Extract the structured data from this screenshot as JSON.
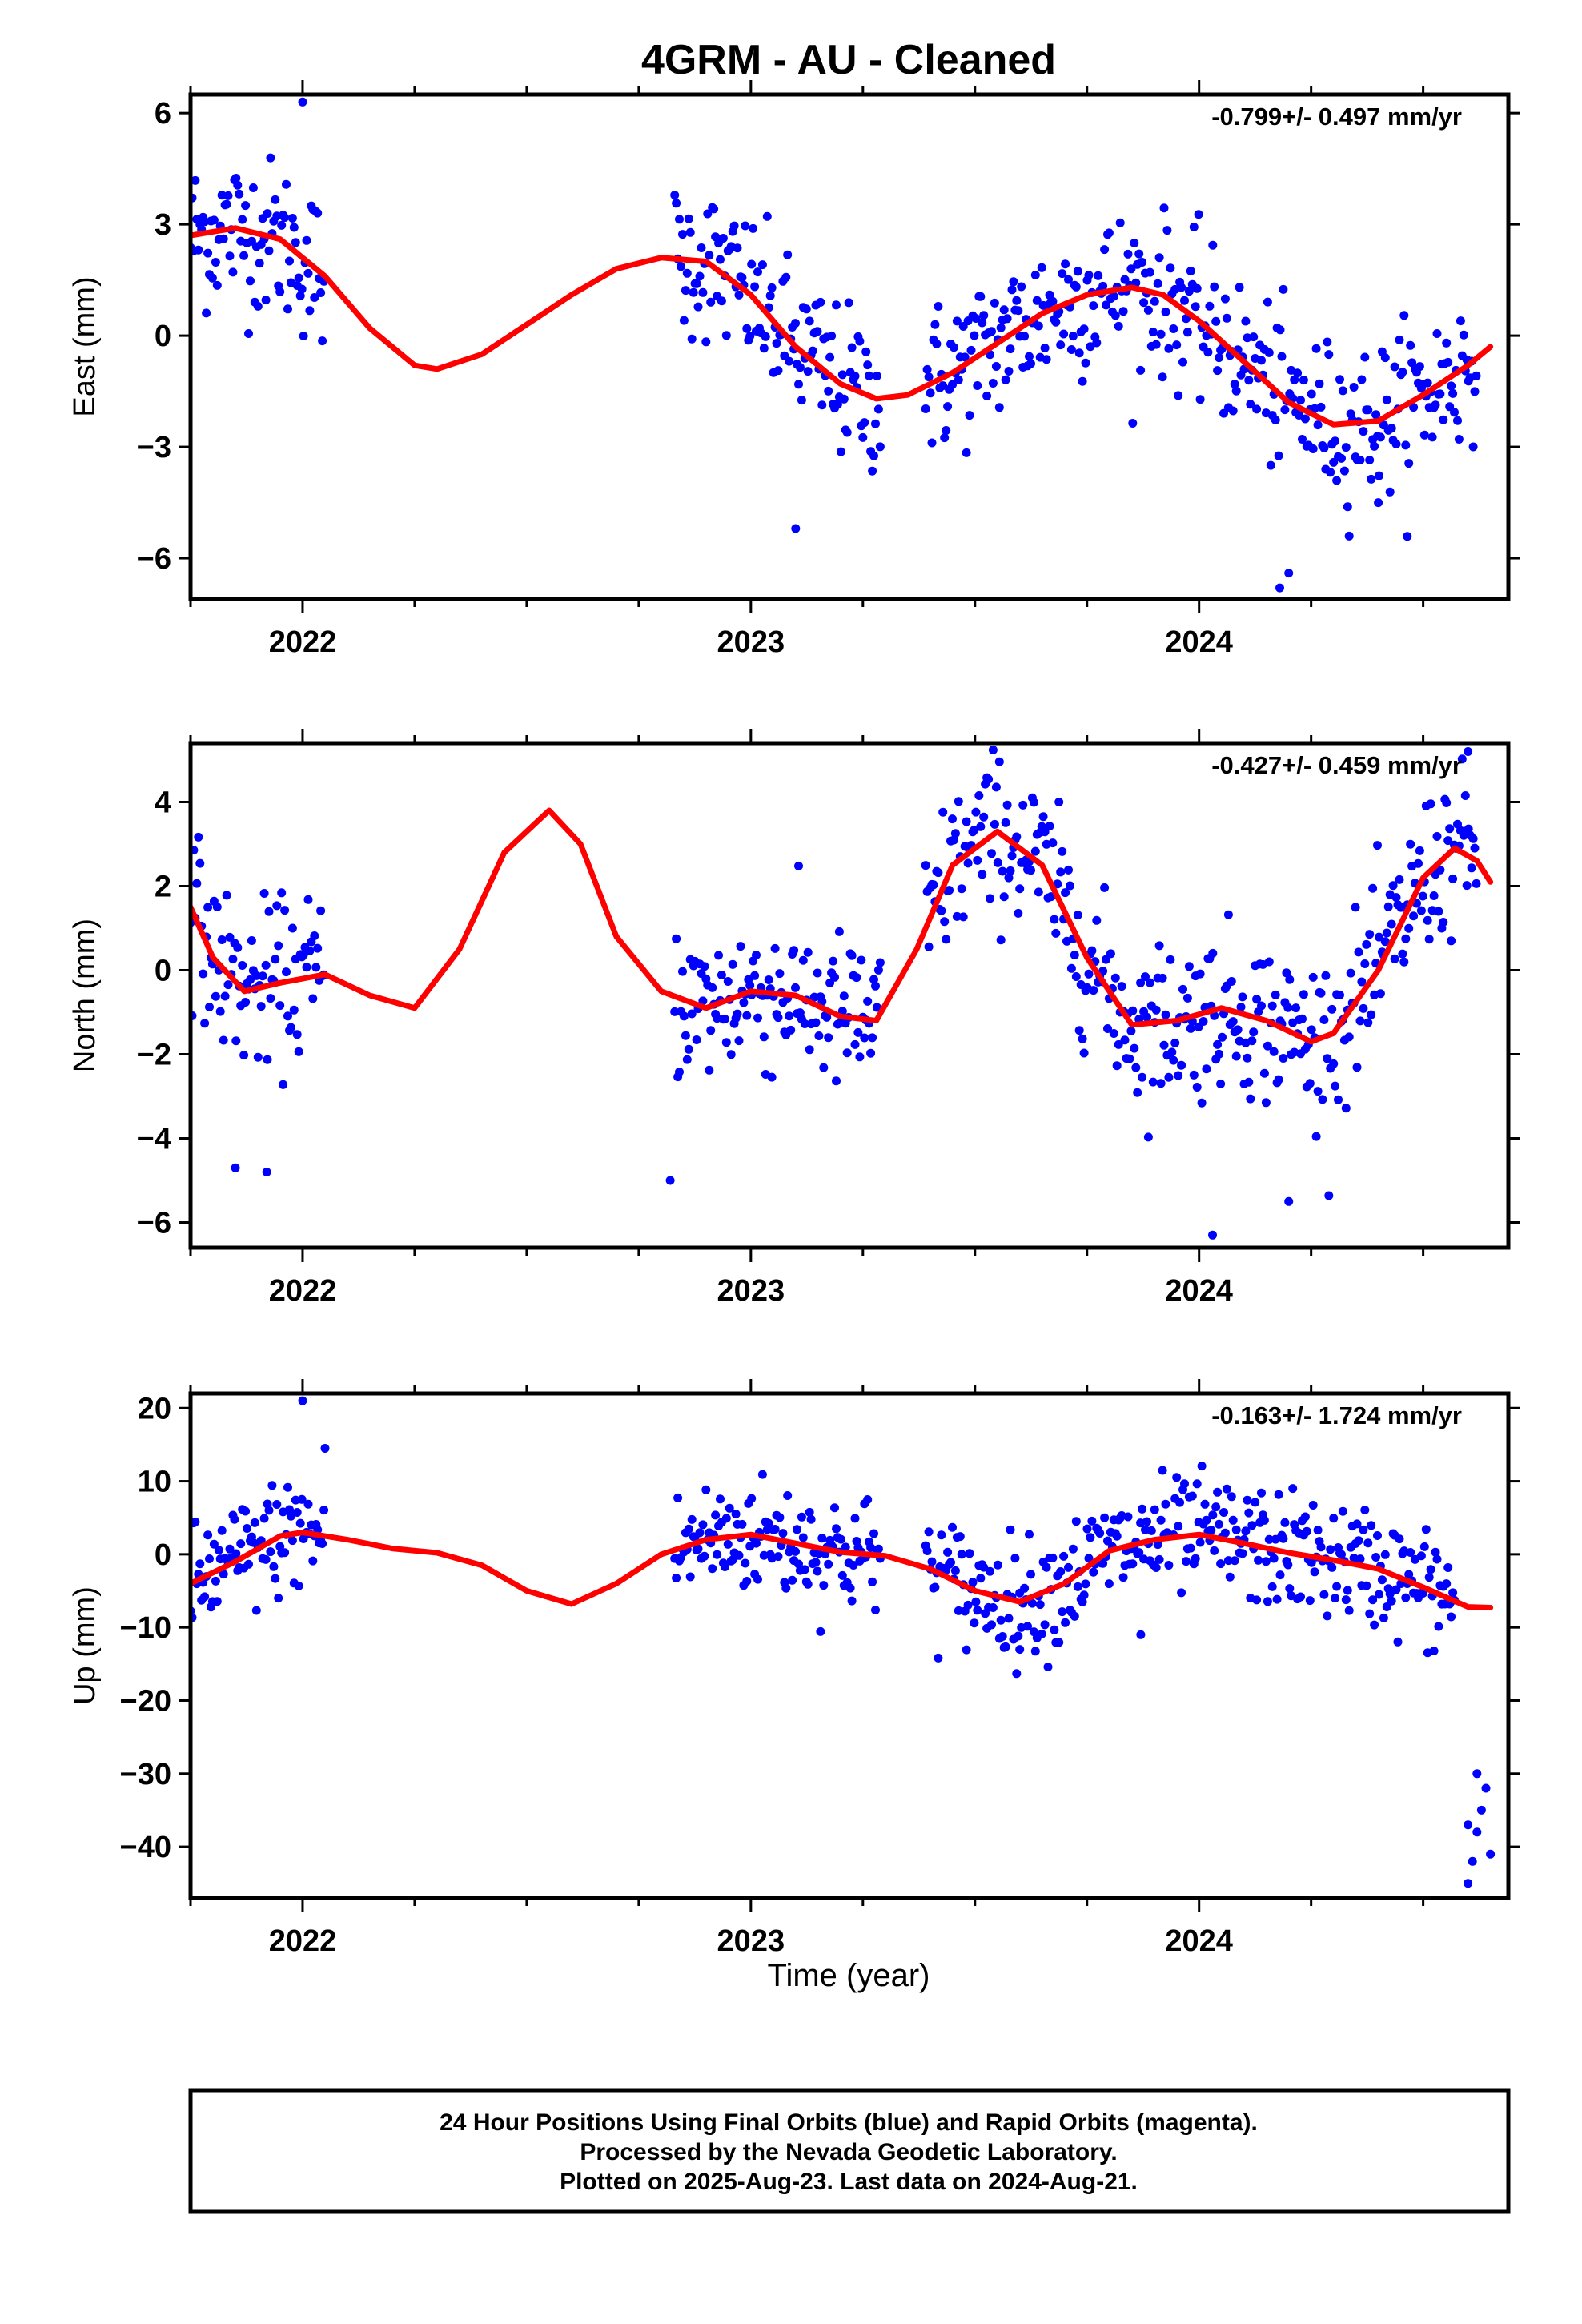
{
  "title": "4GRM  - AU - Cleaned",
  "footer": {
    "line1": "24 Hour Positions Using Final Orbits (blue) and Rapid Orbits (magenta).",
    "line2": "Processed by the Nevada Geodetic Laboratory.",
    "line3": "Plotted on 2025-Aug-23. Last data on 2024-Aug-21."
  },
  "colors": {
    "points": "#0000ff",
    "fit": "#ff0000",
    "frame": "#000000"
  },
  "chart_data": [
    {
      "type": "scatter",
      "ylabel": "East (mm)",
      "rate": "-0.799+/- 0.497 mm/yr",
      "xlim": [
        2021.75,
        2024.69
      ],
      "ylim": [
        -7.1,
        6.5
      ],
      "yticks": [
        {
          "v": 6,
          "label": "6"
        },
        {
          "v": 3,
          "label": "3"
        },
        {
          "v": 0,
          "label": "0"
        },
        {
          "v": -3,
          "label": "−3"
        },
        {
          "v": -6,
          "label": "−6"
        }
      ],
      "xticks": [
        {
          "v": 2022,
          "label": "2022"
        },
        {
          "v": 2023,
          "label": "2023"
        },
        {
          "v": 2024,
          "label": "2024"
        }
      ],
      "data_segments": [
        [
          2021.75,
          2022.05
        ],
        [
          2022.83,
          2023.29
        ],
        [
          2023.39,
          2024.62
        ]
      ],
      "fit": [
        [
          2021.75,
          2.7
        ],
        [
          2021.85,
          2.9
        ],
        [
          2021.95,
          2.6
        ],
        [
          2022.05,
          1.6
        ],
        [
          2022.15,
          0.2
        ],
        [
          2022.25,
          -0.8
        ],
        [
          2022.3,
          -0.9
        ],
        [
          2022.4,
          -0.5
        ],
        [
          2022.5,
          0.3
        ],
        [
          2022.6,
          1.1
        ],
        [
          2022.7,
          1.8
        ],
        [
          2022.8,
          2.1
        ],
        [
          2022.9,
          2.0
        ],
        [
          2023.0,
          1.1
        ],
        [
          2023.1,
          -0.3
        ],
        [
          2023.2,
          -1.3
        ],
        [
          2023.28,
          -1.7
        ],
        [
          2023.35,
          -1.6
        ],
        [
          2023.45,
          -1.0
        ],
        [
          2023.55,
          -0.2
        ],
        [
          2023.65,
          0.6
        ],
        [
          2023.75,
          1.1
        ],
        [
          2023.85,
          1.3
        ],
        [
          2023.92,
          1.1
        ],
        [
          2024.0,
          0.4
        ],
        [
          2024.1,
          -0.7
        ],
        [
          2024.2,
          -1.8
        ],
        [
          2024.3,
          -2.4
        ],
        [
          2024.4,
          -2.3
        ],
        [
          2024.5,
          -1.6
        ],
        [
          2024.6,
          -0.8
        ],
        [
          2024.65,
          -0.3
        ]
      ],
      "outliers": [
        [
          2022.0,
          6.3
        ],
        [
          2023.1,
          -5.2
        ],
        [
          2024.18,
          -6.8
        ],
        [
          2024.2,
          -6.4
        ],
        [
          2024.4,
          -4.5
        ]
      ]
    },
    {
      "type": "scatter",
      "ylabel": "North (mm)",
      "rate": "-0.427+/- 0.459 mm/yr",
      "xlim": [
        2021.75,
        2024.69
      ],
      "ylim": [
        -6.6,
        5.4
      ],
      "yticks": [
        {
          "v": 4,
          "label": "4"
        },
        {
          "v": 2,
          "label": "2"
        },
        {
          "v": 0,
          "label": "0"
        },
        {
          "v": -2,
          "label": "−2"
        },
        {
          "v": -4,
          "label": "−4"
        },
        {
          "v": -6,
          "label": "−6"
        }
      ],
      "xticks": [
        {
          "v": 2022,
          "label": "2022"
        },
        {
          "v": 2023,
          "label": "2023"
        },
        {
          "v": 2024,
          "label": "2024"
        }
      ],
      "data_segments": [
        [
          2021.75,
          2022.05
        ],
        [
          2022.83,
          2023.29
        ],
        [
          2023.39,
          2024.62
        ]
      ],
      "fit": [
        [
          2021.75,
          1.5
        ],
        [
          2021.8,
          0.3
        ],
        [
          2021.87,
          -0.5
        ],
        [
          2021.95,
          -0.3
        ],
        [
          2022.05,
          -0.1
        ],
        [
          2022.15,
          -0.6
        ],
        [
          2022.25,
          -0.9
        ],
        [
          2022.35,
          0.5
        ],
        [
          2022.45,
          2.8
        ],
        [
          2022.55,
          3.8
        ],
        [
          2022.62,
          3.0
        ],
        [
          2022.7,
          0.8
        ],
        [
          2022.8,
          -0.5
        ],
        [
          2022.9,
          -0.9
        ],
        [
          2023.0,
          -0.5
        ],
        [
          2023.1,
          -0.6
        ],
        [
          2023.2,
          -1.1
        ],
        [
          2023.28,
          -1.2
        ],
        [
          2023.37,
          0.5
        ],
        [
          2023.45,
          2.5
        ],
        [
          2023.55,
          3.3
        ],
        [
          2023.65,
          2.5
        ],
        [
          2023.75,
          0.3
        ],
        [
          2023.85,
          -1.3
        ],
        [
          2023.95,
          -1.2
        ],
        [
          2024.05,
          -0.9
        ],
        [
          2024.15,
          -1.2
        ],
        [
          2024.25,
          -1.7
        ],
        [
          2024.3,
          -1.5
        ],
        [
          2024.4,
          0.0
        ],
        [
          2024.5,
          2.2
        ],
        [
          2024.57,
          2.9
        ],
        [
          2024.62,
          2.6
        ],
        [
          2024.65,
          2.1
        ]
      ],
      "outliers": [
        [
          2021.85,
          -4.7
        ],
        [
          2021.92,
          -4.8
        ],
        [
          2022.82,
          -5.0
        ],
        [
          2024.03,
          -6.3
        ],
        [
          2024.2,
          -5.5
        ],
        [
          2024.6,
          5.2
        ]
      ]
    },
    {
      "type": "scatter",
      "ylabel": "Up (mm)",
      "rate": "-0.163+/- 1.724 mm/yr",
      "xlim": [
        2021.75,
        2024.69
      ],
      "ylim": [
        -47,
        22
      ],
      "yticks": [
        {
          "v": 20,
          "label": "20"
        },
        {
          "v": 10,
          "label": "10"
        },
        {
          "v": 0,
          "label": "0"
        },
        {
          "v": -10,
          "label": "−10"
        },
        {
          "v": -20,
          "label": "−20"
        },
        {
          "v": -30,
          "label": "−30"
        },
        {
          "v": -40,
          "label": "−40"
        }
      ],
      "xticks": [
        {
          "v": 2022,
          "label": "2022"
        },
        {
          "v": 2023,
          "label": "2023"
        },
        {
          "v": 2024,
          "label": "2024"
        }
      ],
      "data_segments": [
        [
          2021.75,
          2022.05
        ],
        [
          2022.83,
          2023.29
        ],
        [
          2023.39,
          2024.57
        ]
      ],
      "fit": [
        [
          2021.75,
          -4
        ],
        [
          2021.85,
          -1
        ],
        [
          2021.95,
          2.5
        ],
        [
          2022.0,
          3
        ],
        [
          2022.1,
          2
        ],
        [
          2022.2,
          0.8
        ],
        [
          2022.3,
          0.2
        ],
        [
          2022.4,
          -1.5
        ],
        [
          2022.5,
          -5
        ],
        [
          2022.6,
          -6.8
        ],
        [
          2022.7,
          -4
        ],
        [
          2022.8,
          0
        ],
        [
          2022.9,
          2
        ],
        [
          2023.0,
          2.7
        ],
        [
          2023.1,
          1.5
        ],
        [
          2023.2,
          0.3
        ],
        [
          2023.3,
          -0.2
        ],
        [
          2023.4,
          -2
        ],
        [
          2023.5,
          -5
        ],
        [
          2023.6,
          -6.5
        ],
        [
          2023.7,
          -4
        ],
        [
          2023.8,
          0.5
        ],
        [
          2023.9,
          2
        ],
        [
          2024.0,
          2.7
        ],
        [
          2024.1,
          1.5
        ],
        [
          2024.2,
          0.2
        ],
        [
          2024.3,
          -0.8
        ],
        [
          2024.4,
          -2
        ],
        [
          2024.5,
          -4.5
        ],
        [
          2024.6,
          -7.2
        ],
        [
          2024.65,
          -7.3
        ]
      ],
      "outliers": [
        [
          2022.0,
          21
        ],
        [
          2022.05,
          14.5
        ],
        [
          2023.87,
          -11
        ],
        [
          2023.6,
          -13
        ],
        [
          2024.6,
          -45
        ],
        [
          2024.61,
          -42
        ],
        [
          2024.62,
          -38
        ],
        [
          2024.63,
          -35
        ],
        [
          2024.64,
          -32
        ],
        [
          2024.62,
          -30
        ],
        [
          2024.65,
          -41
        ],
        [
          2024.6,
          -37
        ]
      ]
    }
  ]
}
